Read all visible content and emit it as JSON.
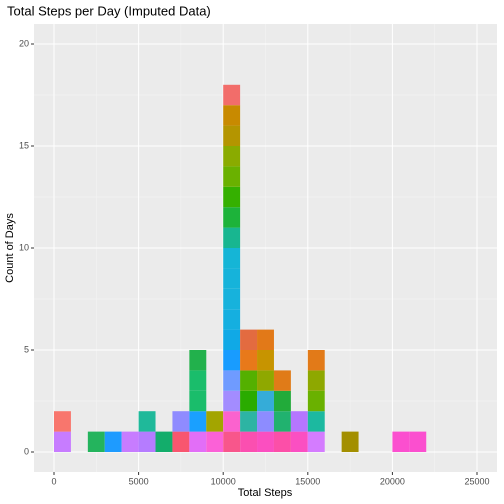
{
  "chart_data": {
    "type": "histogram",
    "title": "Total Steps per Day (Imputed Data)",
    "x_label": "Total Steps",
    "y_label": "Count of Days",
    "bins": [
      0,
      1000,
      2000,
      3000,
      4000,
      5000,
      6000,
      7000,
      8000,
      9000,
      10000,
      11000,
      12000,
      13000,
      14000,
      15000,
      16000,
      17000,
      18000,
      19000,
      20000,
      21000,
      22000
    ],
    "counts": [
      2,
      0,
      1,
      1,
      1,
      2,
      1,
      2,
      5,
      2,
      18,
      6,
      6,
      4,
      2,
      5,
      0,
      1,
      0,
      0,
      1,
      1
    ],
    "segment_colors": [
      [
        "#c77cff",
        "#f8766d"
      ],
      [],
      [
        "#24b45d"
      ],
      [
        "#1e9bff"
      ],
      [
        "#c77cff"
      ],
      [
        "#b57cff",
        "#1fb99a"
      ],
      [
        "#13ad6b"
      ],
      [
        "#f8566f",
        "#8f8bff"
      ],
      [
        "#e26ef7",
        "#1aa0ff",
        "#1abd6b",
        "#1abd6b",
        "#22b14c"
      ],
      [
        "#fb61d7",
        "#a3a500"
      ],
      [
        "#f8568b",
        "#fb62ce",
        "#a38cff",
        "#6f9bff",
        "#189cff",
        "#10a9e6",
        "#15afe0",
        "#17b2dc",
        "#16b3da",
        "#15b5d6",
        "#18b690",
        "#1db33a",
        "#35b000",
        "#6ab100",
        "#8aab00",
        "#b49500",
        "#c88a00",
        "#f26d6a"
      ],
      [
        "#fb4fb0",
        "#2db4a3",
        "#2aab00",
        "#54b000",
        "#e8791a",
        "#e36b40"
      ],
      [
        "#fb4fc0",
        "#8d8cff",
        "#35acd8",
        "#8fa800",
        "#c79400",
        "#e27918"
      ],
      [
        "#fc4fa8",
        "#21b26f",
        "#22ab3a",
        "#e07b18"
      ],
      [
        "#fb4fc2",
        "#b576ff"
      ],
      [
        "#d47cff",
        "#1cb9a0",
        "#6ab100",
        "#8ea800",
        "#e27a18"
      ],
      [],
      [
        "#a38f00"
      ],
      [],
      [],
      [
        "#fb4fcf"
      ],
      [
        "#fb4fcf"
      ]
    ],
    "xlim": [
      -1182,
      26182
    ],
    "xticks": [
      0,
      5000,
      10000,
      15000,
      20000,
      25000
    ],
    "ylim": [
      -0.98,
      20.98
    ],
    "yticks": [
      0,
      5,
      10,
      15,
      20
    ],
    "grid": true,
    "background": "#ebebeb"
  }
}
